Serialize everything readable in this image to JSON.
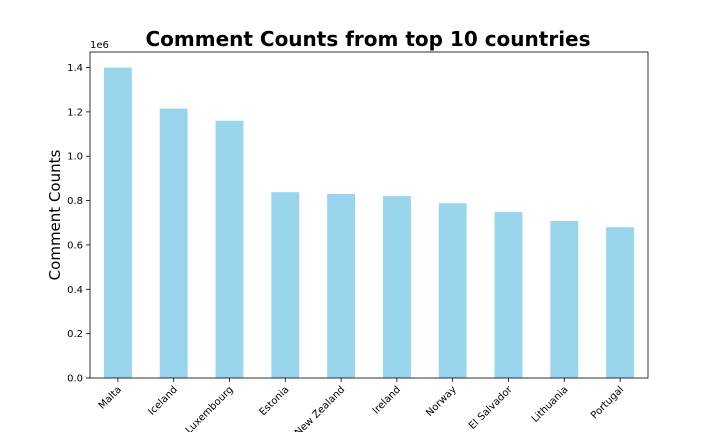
{
  "chart_data": {
    "type": "bar",
    "title": "Comment Counts from top 10 countries",
    "xlabel": "",
    "ylabel": "Comment Counts",
    "y_offset_label": "1e6",
    "y_scale": 1000000,
    "categories": [
      "Malta",
      "Iceland",
      "Luxembourg",
      "Estonia",
      "New Zealand",
      "Ireland",
      "Norway",
      "El Salvador",
      "Lithuania",
      "Portugal"
    ],
    "values": [
      1400000,
      1215000,
      1160000,
      838000,
      830000,
      820000,
      788000,
      748000,
      708000,
      680000
    ],
    "ylim": [
      0,
      1470000
    ],
    "yticks": [
      0.0,
      0.2,
      0.4,
      0.6,
      0.8,
      1.0,
      1.2,
      1.4
    ],
    "ytick_labels": [
      "0.0",
      "0.2",
      "0.4",
      "0.6",
      "0.8",
      "1.0",
      "1.2",
      "1.4"
    ],
    "bar_color": "#9ad5ee",
    "grid": false,
    "legend": "none"
  }
}
